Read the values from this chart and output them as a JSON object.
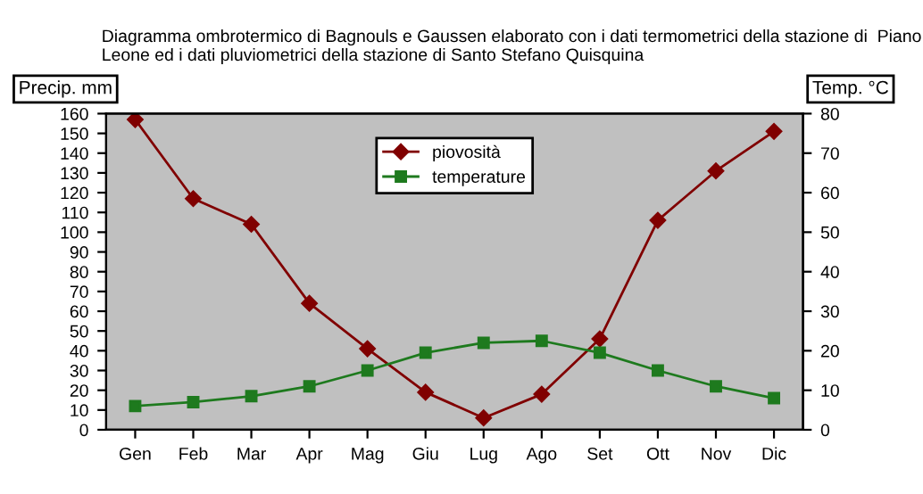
{
  "chart_data": {
    "type": "line",
    "title": "Diagramma ombrotermico di Bagnouls e Gaussen elaborato con i dati termometrici della stazione di  Piano Leone ed i dati pluviometrici della stazione di Santo Stefano Quisquina",
    "ylabel": "Precip. mm",
    "y2label": "Temp. °C",
    "categories": [
      "Gen",
      "Feb",
      "Mar",
      "Apr",
      "Mag",
      "Giu",
      "Lug",
      "Ago",
      "Set",
      "Ott",
      "Nov",
      "Dic"
    ],
    "series": [
      {
        "name": "piovosità",
        "color": "#800000",
        "marker": "diamond",
        "values": [
          157,
          117,
          104,
          64,
          41,
          19,
          6,
          18,
          46,
          106,
          131,
          151
        ]
      },
      {
        "name": "temperature",
        "color": "#1e7a1e",
        "marker": "square",
        "axis": "y2",
        "values": [
          6,
          7,
          8.5,
          11,
          15,
          19.5,
          22,
          22.5,
          19.5,
          15,
          11,
          8
        ]
      }
    ],
    "ylim": [
      0,
      160
    ],
    "yticks": [
      0,
      10,
      20,
      30,
      40,
      50,
      60,
      70,
      80,
      90,
      100,
      110,
      120,
      130,
      140,
      150,
      160
    ],
    "y2lim": [
      0,
      80
    ],
    "y2ticks": [
      0,
      10,
      20,
      30,
      40,
      50,
      60,
      70,
      80
    ],
    "grid": false,
    "legend": "top",
    "line_style": "solid"
  }
}
